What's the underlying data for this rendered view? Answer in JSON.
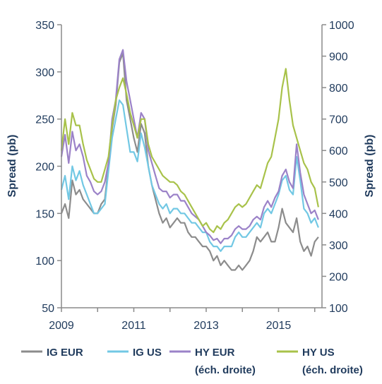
{
  "chart_data": {
    "type": "line",
    "ylabel_left": "Spread (pb)",
    "ylabel_right": "Spread (pb)",
    "xlim": [
      2009,
      2016.2
    ],
    "ylim_left": [
      50,
      350
    ],
    "ylim_right": [
      100,
      1000
    ],
    "xticks": [
      "2009",
      "2011",
      "2013",
      "2015"
    ],
    "yticks_left": [
      "350",
      "300",
      "250",
      "200",
      "150",
      "100",
      "50"
    ],
    "yticks_right": [
      "1000",
      "900",
      "800",
      "700",
      "600",
      "500",
      "400",
      "300",
      "200",
      "100"
    ],
    "grid": false,
    "legend_position": "bottom",
    "series": [
      {
        "name": "IG EUR",
        "axis": "left",
        "color": "#8c8c8c",
        "x": [
          2009.0,
          2009.1,
          2009.2,
          2009.3,
          2009.4,
          2009.5,
          2009.6,
          2009.7,
          2009.8,
          2009.9,
          2010.0,
          2010.1,
          2010.2,
          2010.3,
          2010.4,
          2010.5,
          2010.6,
          2010.7,
          2010.8,
          2010.9,
          2011.0,
          2011.1,
          2011.2,
          2011.3,
          2011.4,
          2011.5,
          2011.6,
          2011.7,
          2011.8,
          2011.9,
          2012.0,
          2012.1,
          2012.2,
          2012.3,
          2012.4,
          2012.5,
          2012.6,
          2012.7,
          2012.8,
          2012.9,
          2013.0,
          2013.1,
          2013.2,
          2013.3,
          2013.4,
          2013.5,
          2013.6,
          2013.7,
          2013.8,
          2013.9,
          2014.0,
          2014.1,
          2014.2,
          2014.3,
          2014.4,
          2014.5,
          2014.6,
          2014.7,
          2014.8,
          2014.9,
          2015.0,
          2015.1,
          2015.2,
          2015.3,
          2015.4,
          2015.5,
          2015.6,
          2015.7,
          2015.8,
          2015.9,
          2016.0,
          2016.1
        ],
        "values": [
          150,
          160,
          145,
          185,
          170,
          175,
          165,
          160,
          155,
          150,
          150,
          160,
          165,
          200,
          240,
          265,
          310,
          320,
          270,
          250,
          230,
          215,
          245,
          235,
          200,
          180,
          165,
          150,
          140,
          145,
          135,
          140,
          145,
          140,
          140,
          130,
          125,
          125,
          120,
          115,
          115,
          110,
          100,
          105,
          95,
          100,
          95,
          90,
          90,
          95,
          90,
          95,
          100,
          110,
          125,
          120,
          125,
          130,
          120,
          120,
          135,
          155,
          140,
          135,
          130,
          145,
          120,
          110,
          115,
          105,
          120,
          125
        ]
      },
      {
        "name": "IG US",
        "axis": "left",
        "color": "#72c8e4",
        "x": [
          2009.0,
          2009.1,
          2009.2,
          2009.3,
          2009.4,
          2009.5,
          2009.6,
          2009.7,
          2009.8,
          2009.9,
          2010.0,
          2010.1,
          2010.2,
          2010.3,
          2010.4,
          2010.5,
          2010.6,
          2010.7,
          2010.8,
          2010.9,
          2011.0,
          2011.1,
          2011.2,
          2011.3,
          2011.4,
          2011.5,
          2011.6,
          2011.7,
          2011.8,
          2011.9,
          2012.0,
          2012.1,
          2012.2,
          2012.3,
          2012.4,
          2012.5,
          2012.6,
          2012.7,
          2012.8,
          2012.9,
          2013.0,
          2013.1,
          2013.2,
          2013.3,
          2013.4,
          2013.5,
          2013.6,
          2013.7,
          2013.8,
          2013.9,
          2014.0,
          2014.1,
          2014.2,
          2014.3,
          2014.4,
          2014.5,
          2014.6,
          2014.7,
          2014.8,
          2014.9,
          2015.0,
          2015.1,
          2015.2,
          2015.3,
          2015.4,
          2015.5,
          2015.6,
          2015.7,
          2015.8,
          2015.9,
          2016.0,
          2016.1
        ],
        "values": [
          175,
          190,
          165,
          200,
          185,
          195,
          180,
          170,
          160,
          150,
          150,
          155,
          160,
          195,
          230,
          250,
          270,
          265,
          240,
          215,
          215,
          205,
          235,
          220,
          200,
          180,
          170,
          160,
          155,
          160,
          150,
          155,
          155,
          150,
          150,
          145,
          140,
          140,
          135,
          130,
          130,
          120,
          115,
          115,
          110,
          115,
          115,
          115,
          125,
          130,
          125,
          125,
          130,
          135,
          140,
          135,
          150,
          155,
          150,
          160,
          170,
          185,
          190,
          175,
          170,
          210,
          185,
          155,
          150,
          140,
          145,
          135
        ]
      },
      {
        "name": "HY EUR",
        "axis": "right",
        "color": "#9b82c8",
        "x": [
          2009.0,
          2009.1,
          2009.2,
          2009.3,
          2009.4,
          2009.5,
          2009.6,
          2009.7,
          2009.8,
          2009.9,
          2010.0,
          2010.1,
          2010.2,
          2010.3,
          2010.4,
          2010.5,
          2010.6,
          2010.7,
          2010.8,
          2010.9,
          2011.0,
          2011.1,
          2011.2,
          2011.3,
          2011.4,
          2011.5,
          2011.6,
          2011.7,
          2011.8,
          2011.9,
          2012.0,
          2012.1,
          2012.2,
          2012.3,
          2012.4,
          2012.5,
          2012.6,
          2012.7,
          2012.8,
          2012.9,
          2013.0,
          2013.1,
          2013.2,
          2013.3,
          2013.4,
          2013.5,
          2013.6,
          2013.7,
          2013.8,
          2013.9,
          2014.0,
          2014.1,
          2014.2,
          2014.3,
          2014.4,
          2014.5,
          2014.6,
          2014.7,
          2014.8,
          2014.9,
          2015.0,
          2015.1,
          2015.2,
          2015.3,
          2015.4,
          2015.5,
          2015.6,
          2015.7,
          2015.8,
          2015.9,
          2016.0,
          2016.1
        ],
        "values": [
          580,
          650,
          560,
          660,
          600,
          620,
          580,
          520,
          500,
          470,
          460,
          470,
          500,
          560,
          700,
          760,
          890,
          920,
          820,
          760,
          700,
          640,
          720,
          700,
          600,
          560,
          520,
          480,
          470,
          470,
          450,
          460,
          460,
          440,
          440,
          420,
          400,
          390,
          380,
          360,
          340,
          330,
          315,
          320,
          305,
          320,
          320,
          330,
          350,
          360,
          350,
          350,
          360,
          380,
          390,
          380,
          420,
          440,
          420,
          450,
          470,
          520,
          540,
          500,
          480,
          620,
          530,
          460,
          430,
          400,
          410,
          380
        ]
      },
      {
        "name": "HY US",
        "axis": "right",
        "color": "#a8c24a",
        "x": [
          2009.0,
          2009.1,
          2009.2,
          2009.3,
          2009.4,
          2009.5,
          2009.6,
          2009.7,
          2009.8,
          2009.9,
          2010.0,
          2010.1,
          2010.2,
          2010.3,
          2010.4,
          2010.5,
          2010.6,
          2010.7,
          2010.8,
          2010.9,
          2011.0,
          2011.1,
          2011.2,
          2011.3,
          2011.4,
          2011.5,
          2011.6,
          2011.7,
          2011.8,
          2011.9,
          2012.0,
          2012.1,
          2012.2,
          2012.3,
          2012.4,
          2012.5,
          2012.6,
          2012.7,
          2012.8,
          2012.9,
          2013.0,
          2013.1,
          2013.2,
          2013.3,
          2013.4,
          2013.5,
          2013.6,
          2013.7,
          2013.8,
          2013.9,
          2014.0,
          2014.1,
          2014.2,
          2014.3,
          2014.4,
          2014.5,
          2014.6,
          2014.7,
          2014.8,
          2014.9,
          2015.0,
          2015.1,
          2015.2,
          2015.3,
          2015.4,
          2015.5,
          2015.6,
          2015.7,
          2015.8,
          2015.9,
          2016.0,
          2016.1
        ],
        "values": [
          600,
          700,
          620,
          720,
          680,
          680,
          620,
          570,
          540,
          510,
          500,
          500,
          540,
          580,
          680,
          760,
          800,
          830,
          780,
          720,
          680,
          640,
          700,
          700,
          620,
          580,
          560,
          540,
          520,
          510,
          500,
          500,
          490,
          470,
          460,
          440,
          420,
          400,
          380,
          360,
          370,
          350,
          340,
          360,
          350,
          370,
          380,
          400,
          420,
          430,
          420,
          430,
          450,
          470,
          490,
          480,
          520,
          560,
          580,
          640,
          700,
          800,
          860,
          760,
          680,
          640,
          600,
          560,
          540,
          500,
          480,
          420
        ]
      }
    ],
    "legend": [
      {
        "line1": "IG EUR",
        "line2": ""
      },
      {
        "line1": "IG US",
        "line2": ""
      },
      {
        "line1": "HY EUR",
        "line2": "(éch. droite)"
      },
      {
        "line1": "HY US",
        "line2": "(éch. droite)"
      }
    ]
  }
}
